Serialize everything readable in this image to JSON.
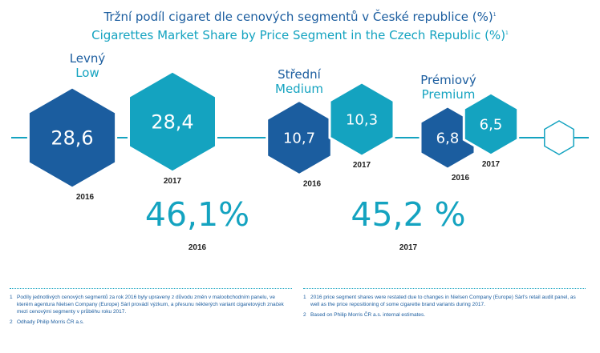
{
  "title": {
    "cz": "Tržní podíl cigaret dle cenových segmentů v České republice (%)",
    "cz_sup": "1",
    "en": "Cigarettes Market Share by Price Segment in the Czech Republic (%)",
    "en_sup": "1"
  },
  "colors": {
    "navy": "#1b5d9f",
    "teal": "#14a3c0",
    "line": "#14a3c0",
    "text": "#222222"
  },
  "chart_data": {
    "type": "bar",
    "categories": [
      "Levný / Low",
      "Střední / Medium",
      "Prémiový / Premium"
    ],
    "series": [
      {
        "name": "2016",
        "values": [
          28.6,
          10.7,
          6.8
        ],
        "labels": [
          "28,6",
          "10,7",
          "6,8"
        ]
      },
      {
        "name": "2017",
        "values": [
          28.4,
          10.3,
          6.5
        ],
        "labels": [
          "28,4",
          "10,3",
          "6,5"
        ]
      }
    ],
    "segments": [
      {
        "cz": "Levný",
        "en": "Low"
      },
      {
        "cz": "Střední",
        "en": "Medium"
      },
      {
        "cz": "Prémiový",
        "en": "Premium"
      }
    ],
    "years": [
      "2016",
      "2017"
    ],
    "totals": [
      {
        "value": 46.1,
        "label": "46,1%",
        "year": "2016"
      },
      {
        "value": 45.2,
        "label": "45,2 %",
        "year": "2017"
      }
    ]
  },
  "footnotes": {
    "left": [
      {
        "num": "1",
        "text": "Podíly jednotlivých cenových segmentů za rok 2016 byly upraveny z důvodu změn v maloobchodním panelu, ve kterém agentura Nielsen Company (Europe) Sàrl provádí výzkum, a přesunu některých variant cigaretových značek mezi cenovými segmenty v průběhu roku 2017."
      },
      {
        "num": "2",
        "text": "Odhady Philip Morris ČR a.s."
      }
    ],
    "right": [
      {
        "num": "1",
        "text": "2016 price segment shares were restated due to changes in Nielsen Company (Europe) Sàrl's retail audit panel, as well as the price repositioning of some cigarette brand variants during 2017."
      },
      {
        "num": "2",
        "text": "Based on Philip Morris ČR a.s. internal estimates."
      }
    ]
  }
}
